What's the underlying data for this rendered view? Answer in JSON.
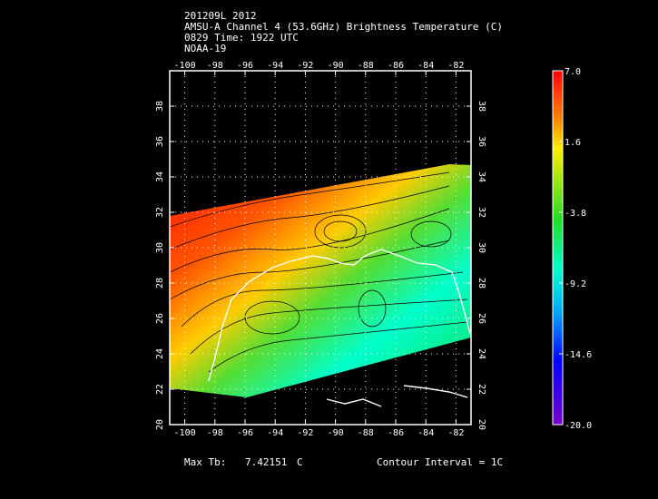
{
  "header": {
    "line1": "201209L 2012",
    "line2": "AMSU-A Channel 4 (53.6GHz) Brightness Temperature (C)",
    "line3": "0829 Time: 1922 UTC",
    "line4": "NOAA-19"
  },
  "map": {
    "lon_labels": [
      "-100",
      "-98",
      "-96",
      "-94",
      "-92",
      "-90",
      "-88",
      "-86",
      "-84",
      "-82"
    ],
    "lat_labels": [
      "20",
      "22",
      "24",
      "26",
      "28",
      "30",
      "32",
      "34",
      "36",
      "38"
    ],
    "lon_range": [
      -101.0,
      -81.0
    ],
    "lat_range": [
      20.0,
      40.0
    ],
    "grid": "dotted"
  },
  "colorbar": {
    "labels": [
      "7.0",
      "1.6",
      "-3.8",
      "-9.2",
      "-14.6",
      "-20.0"
    ],
    "range": [
      -20.0,
      7.0
    ],
    "colors": [
      "#ff0000",
      "#ff8800",
      "#ffee00",
      "#22dd22",
      "#00ffcc",
      "#00aaff",
      "#0000ff",
      "#7700cc"
    ]
  },
  "footer": {
    "max_label": "Max Tb:",
    "max_value": "7.42151",
    "max_unit": "C",
    "contour": "Contour Interval = 1C"
  }
}
